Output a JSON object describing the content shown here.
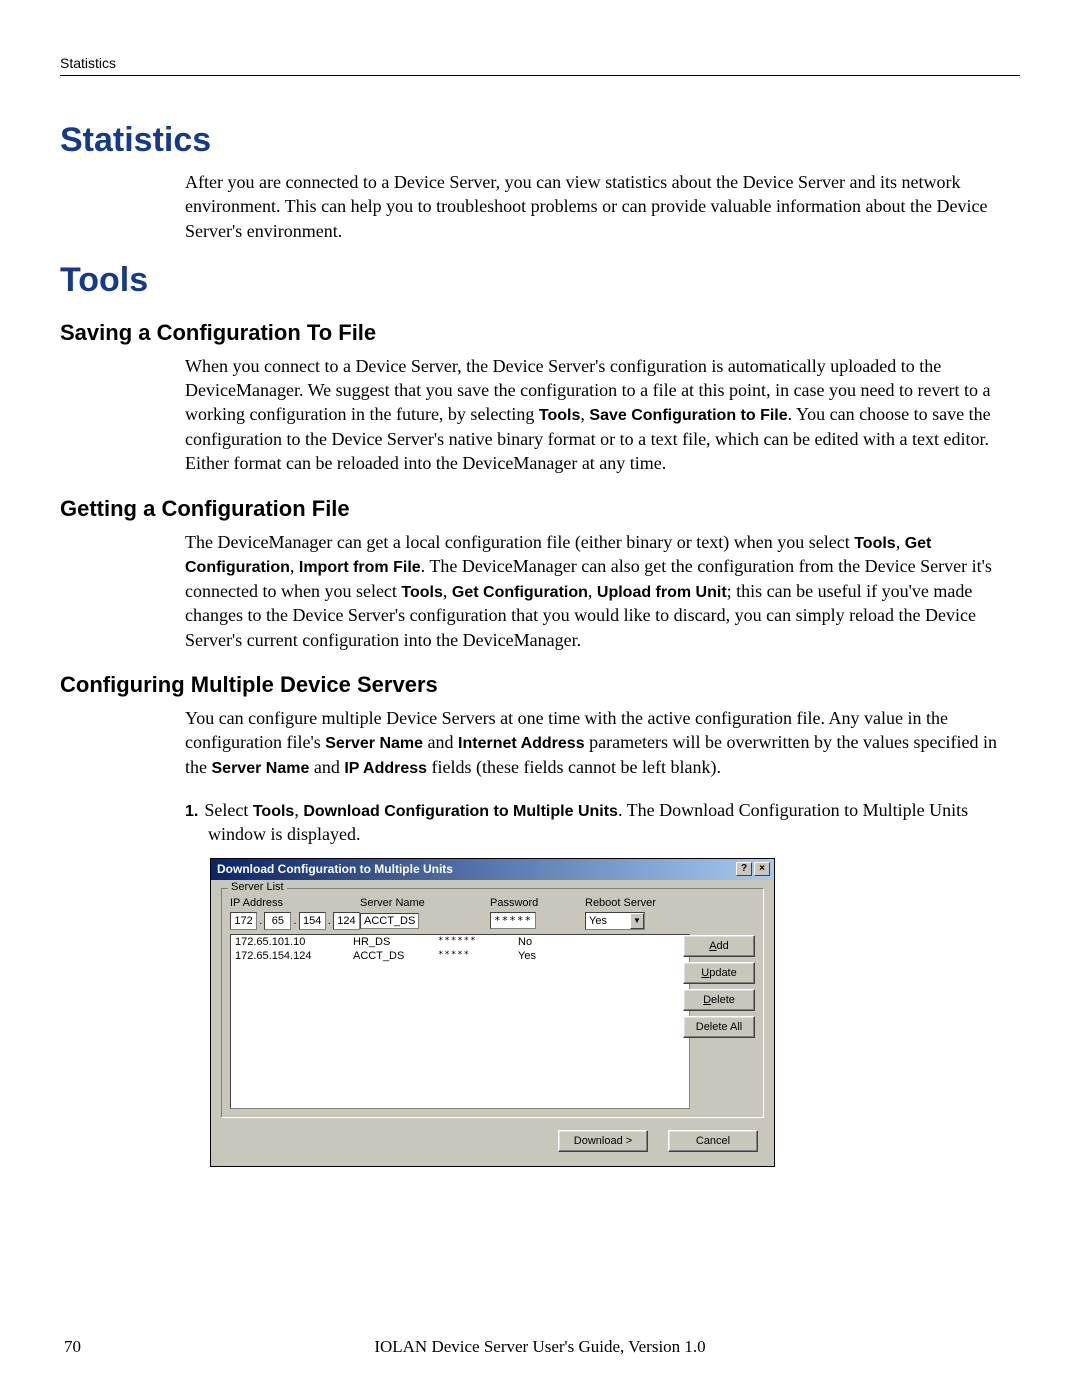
{
  "header": {
    "running_title": "Statistics"
  },
  "sections": {
    "statistics": {
      "heading": "Statistics",
      "para": "After you are connected to a Device Server, you can view statistics about the Device Server and its network environment. This can help you to troubleshoot problems or can provide valuable information about the Device Server's environment."
    },
    "tools": {
      "heading": "Tools",
      "saving": {
        "heading": "Saving a Configuration To File",
        "para_a": "When you connect to a Device Server, the Device Server's configuration is automatically uploaded to the DeviceManager. We suggest that you save the configuration to a file at this point, in case you need to revert to a working configuration in the future, by selecting ",
        "bold_a": "Tools",
        "sep1": ", ",
        "bold_b": "Save Configuration to File",
        "para_b": ". You can choose to save the configuration to the Device Server's native binary format or to a text file, which can be edited with a text editor. Either format can be reloaded into the DeviceManager at any time."
      },
      "getting": {
        "heading": "Getting a Configuration File",
        "t1": "The DeviceManager can get a local configuration file (either binary or text) when you select ",
        "b1": "Tools",
        "s1": ", ",
        "b2": "Get Configuration",
        "s2": ", ",
        "b3": "Import from File",
        "t2": ". The DeviceManager can also get the configuration from the Device Server it's connected to when you select ",
        "b4": "Tools",
        "s3": ", ",
        "b5": "Get Configuration",
        "s4": ", ",
        "b6": "Upload from Unit",
        "t3": "; this can be useful if you've made changes to the Device Server's configuration that you would like to discard, you can simply reload the Device Server's current configuration into the DeviceManager."
      },
      "multi": {
        "heading": "Configuring Multiple Device Servers",
        "t1": "You can configure multiple Device Servers at one time with the active configuration file. Any value in the configuration file's ",
        "b1": "Server Name",
        "s1": " and ",
        "b2": "Internet Address",
        "t2": " parameters will be overwritten by the values specified in the ",
        "b3": "Server Name",
        "s2": " and ",
        "b4": "IP Address",
        "t3": " fields (these fields cannot be left blank).",
        "step_num": "1.",
        "step_a": "Select ",
        "sb1": "Tools",
        "ss1": ", ",
        "sb2": "Download Configuration to Multiple Units",
        "step_b": ". The Download Configuration to Multiple Units window is displayed."
      }
    }
  },
  "dialog": {
    "title": "Download Configuration to Multiple Units",
    "help_btn": "?",
    "close_btn": "×",
    "server_list_legend": "Server List",
    "hdr_ip": "IP Address",
    "hdr_sn": "Server Name",
    "hdr_pw": "Password",
    "hdr_rs": "Reboot Server",
    "ip_parts": [
      "172",
      "65",
      "154",
      "124"
    ],
    "server_name_value": "ACCT_DS",
    "password_value": "*****",
    "reboot_value": "Yes",
    "rows": [
      {
        "ip": "172.65.101.10",
        "sn": "HR_DS",
        "pw": "******",
        "rs": "No"
      },
      {
        "ip": "172.65.154.124",
        "sn": "ACCT_DS",
        "pw": "*****",
        "rs": "Yes"
      }
    ],
    "btn_add": "Add",
    "btn_add_ul": "A",
    "btn_update": "Update",
    "btn_update_ul": "U",
    "btn_delete": "Delete",
    "btn_delete_ul": "D",
    "btn_delete_all": "Delete All",
    "btn_download": "Download >",
    "btn_cancel": "Cancel"
  },
  "footer": {
    "page": "70",
    "title": "IOLAN Device Server User's Guide, Version 1.0"
  }
}
